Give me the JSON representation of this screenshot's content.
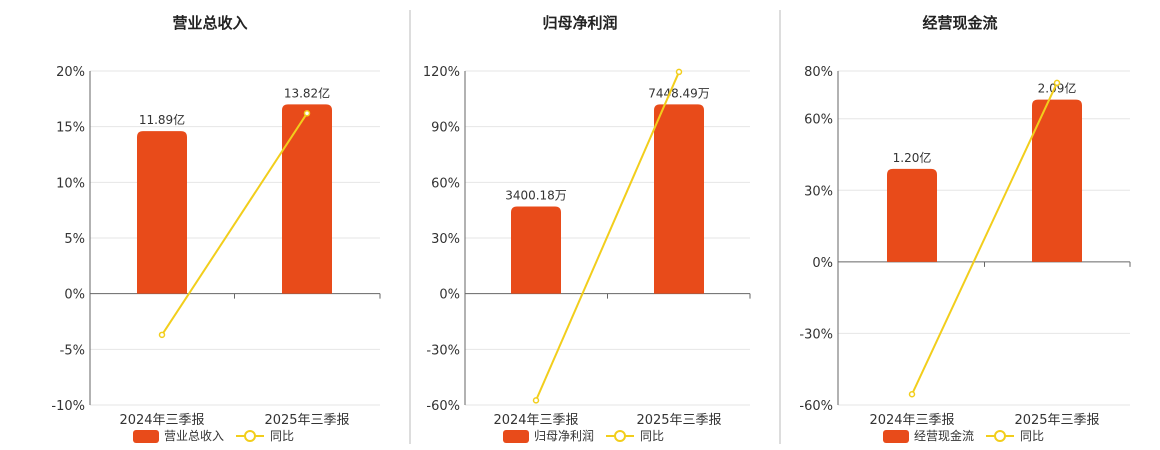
{
  "colors": {
    "bar": "#E84B1A",
    "line": "#F2CE1C",
    "grid": "#e6e6e6"
  },
  "chart_data": [
    {
      "type": "bar",
      "title": "营业总收入",
      "categories": [
        "2024年三季报",
        "2025年三季报"
      ],
      "ylim": [
        -10,
        20
      ],
      "yticks": [
        20,
        15,
        10,
        5,
        0,
        -5,
        -10
      ],
      "ytick_labels": [
        "20%",
        "15%",
        "10%",
        "5%",
        "0%",
        "-5%",
        "-10%"
      ],
      "grid": true,
      "legend_position": "bottom",
      "series": [
        {
          "name": "营业总收入",
          "type": "bar",
          "values": [
            14.6,
            17.0
          ],
          "labels": [
            "11.89亿",
            "13.82亿"
          ]
        },
        {
          "name": "同比",
          "type": "line",
          "values": [
            -3.7,
            16.2
          ]
        }
      ]
    },
    {
      "type": "bar",
      "title": "归母净利润",
      "categories": [
        "2024年三季报",
        "2025年三季报"
      ],
      "ylim": [
        -60,
        120
      ],
      "yticks": [
        120,
        90,
        60,
        30,
        0,
        -30,
        -60
      ],
      "ytick_labels": [
        "120%",
        "90%",
        "60%",
        "30%",
        "0%",
        "-30%",
        "-60%"
      ],
      "grid": true,
      "legend_position": "bottom",
      "series": [
        {
          "name": "归母净利润",
          "type": "bar",
          "values": [
            47,
            102
          ],
          "labels": [
            "3400.18万",
            "7448.49万"
          ]
        },
        {
          "name": "同比",
          "type": "line",
          "values": [
            -57.5,
            119.5
          ]
        }
      ]
    },
    {
      "type": "bar",
      "title": "经营现金流",
      "categories": [
        "2024年三季报",
        "2025年三季报"
      ],
      "ylim": [
        -60,
        80
      ],
      "yticks": [
        80,
        60,
        30,
        0,
        -30,
        -60
      ],
      "ytick_labels": [
        "80%",
        "60%",
        "30%",
        "0%",
        "-30%",
        "-60%"
      ],
      "grid": true,
      "legend_position": "bottom",
      "series": [
        {
          "name": "经营现金流",
          "type": "bar",
          "values": [
            39,
            68
          ],
          "labels": [
            "1.20亿",
            "2.09亿"
          ]
        },
        {
          "name": "同比",
          "type": "line",
          "values": [
            -55.5,
            75
          ]
        }
      ]
    }
  ]
}
